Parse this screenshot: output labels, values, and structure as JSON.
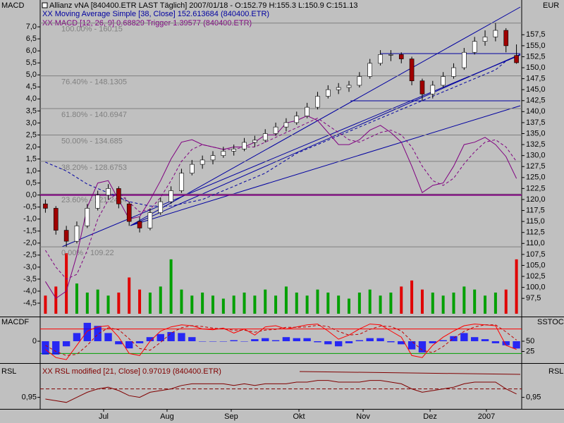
{
  "chart_data": [
    {
      "type": "candlestick",
      "title": "Allianz vNA [840400.ETR LAST Täglich] 2007/01/18 - O:152.79 H:155.3 L:150.9 C:151.13",
      "y_label": "EUR",
      "y2_label": "MACD",
      "open": [
        119,
        118,
        113,
        110.5,
        114,
        118,
        121,
        122.5,
        119,
        115,
        113.5,
        117,
        119.5,
        122,
        126,
        128,
        129,
        130,
        131,
        131.5,
        133,
        133.5,
        135,
        136.5,
        137.5,
        139,
        141,
        143.5,
        145,
        145.5,
        146,
        148,
        151,
        153,
        153,
        152,
        147,
        144,
        146,
        148,
        150,
        153.5,
        156,
        157,
        158.5,
        152.79
      ],
      "high": [
        120,
        118.5,
        114,
        115,
        119,
        122,
        123.5,
        123,
        119.5,
        116,
        118,
        120.5,
        123,
        127,
        129,
        130,
        131,
        132,
        132.5,
        134,
        134.5,
        136,
        137.5,
        138.5,
        140,
        142,
        144.5,
        146,
        146.5,
        147,
        149,
        152,
        154,
        154,
        153.5,
        152.5,
        147.5,
        147,
        149,
        151,
        154.5,
        157,
        158.5,
        160.15,
        159,
        155.3
      ],
      "low": [
        117,
        112,
        109.22,
        110,
        113.5,
        117.5,
        120,
        118,
        114,
        112.5,
        113,
        116.5,
        119,
        121.5,
        125.5,
        127,
        128,
        129.5,
        130,
        131,
        132,
        133,
        134.5,
        135.5,
        137,
        138.5,
        140.5,
        143,
        144,
        144.5,
        145.5,
        147.5,
        150.5,
        151.5,
        151,
        146,
        142.5,
        143,
        145.5,
        147.5,
        149.5,
        153,
        155,
        156,
        153.5,
        150.9
      ],
      "close": [
        118,
        113,
        110.5,
        114,
        118,
        121,
        122.5,
        119,
        115,
        113.5,
        117,
        119.5,
        122,
        126,
        128,
        129,
        130,
        131,
        131.5,
        133,
        133.5,
        135,
        136.5,
        137.5,
        139,
        141,
        143.5,
        145,
        145.5,
        146,
        148,
        151,
        153,
        153,
        152,
        147,
        144,
        146,
        148,
        150,
        153.5,
        156,
        157,
        158.5,
        155,
        151.13
      ],
      "up_color": "#ffffff",
      "down_color": "#a00000",
      "volume": [
        30,
        45,
        100,
        50,
        35,
        40,
        30,
        35,
        60,
        40,
        35,
        45,
        90,
        40,
        30,
        35,
        30,
        25,
        30,
        35,
        30,
        40,
        30,
        45,
        35,
        30,
        40,
        35,
        30,
        25,
        35,
        40,
        30,
        35,
        45,
        55,
        40,
        35,
        30,
        35,
        45,
        40,
        30,
        35,
        40,
        90
      ],
      "volume_up_color": "#00a000",
      "volume_down_color": "#e00000",
      "vlim": [
        0,
        105
      ],
      "series": [
        {
          "name": "XX Moving Average Simple [38, Close] 152.613684 (840400.ETR)",
          "color": "#0000a0",
          "dashed": true,
          "values": [
            128.5,
            127.5,
            126.5,
            125,
            123.5,
            122.5,
            121.5,
            120.5,
            119.5,
            119,
            118.5,
            118.5,
            118.5,
            119,
            119.5,
            120,
            121,
            122,
            123,
            124,
            125,
            126,
            127.5,
            129,
            130.5,
            131.5,
            132.5,
            133.5,
            134.5,
            135.5,
            136.5,
            137.5,
            138.5,
            139.5,
            140.5,
            141.5,
            142.5,
            143.5,
            144.5,
            145.5,
            146.5,
            147.5,
            148.5,
            149.5,
            151.5,
            152.61
          ]
        },
        {
          "name": "XX MACD [12, 26, 9] 0.68829 Trigger 1.39577 (840400.ETR)",
          "color": "#800080",
          "axis": "y2",
          "values": [
            -3.6,
            -4.3,
            -4.0,
            -2.5,
            -0.5,
            0.5,
            0.6,
            -0.2,
            -1.0,
            -0.9,
            -0.2,
            0.6,
            1.5,
            2.2,
            2.3,
            2.1,
            2.0,
            1.9,
            2.0,
            2.0,
            2.2,
            2.5,
            2.5,
            3.0,
            3.1,
            3.3,
            3.1,
            2.6,
            2.1,
            2.1,
            2.3,
            2.7,
            2.9,
            2.6,
            2.2,
            1.2,
            0.1,
            0.4,
            0.5,
            1.2,
            2.1,
            2.2,
            2.4,
            2.1,
            1.6,
            0.68829
          ],
          "trigger": [
            -2.3,
            -3.0,
            -3.5,
            -3.3,
            -2.3,
            -1.0,
            -0.2,
            0.1,
            -0.3,
            -0.7,
            -0.6,
            -0.1,
            0.6,
            1.4,
            1.9,
            2.1,
            2.0,
            1.9,
            1.9,
            2.0,
            2.0,
            2.2,
            2.4,
            2.6,
            2.8,
            3.0,
            3.2,
            2.9,
            2.6,
            2.3,
            2.2,
            2.4,
            2.6,
            2.7,
            2.5,
            2.0,
            1.2,
            0.6,
            0.4,
            0.7,
            1.3,
            1.8,
            2.2,
            2.3,
            2.0,
            1.39577
          ]
        }
      ],
      "y2_hlines": [
        0
      ],
      "y2_hline_color": "#800080",
      "fib_levels": [
        {
          "value": 160.15,
          "label": "100.00% - 160.15"
        },
        {
          "value": 148.1305,
          "label": "76.40% - 148.1305"
        },
        {
          "value": 140.6947,
          "label": "61.80% - 140.6947"
        },
        {
          "value": 134.685,
          "label": "50.00% - 134.685"
        },
        {
          "value": 128.6753,
          "label": "38.20% - 128.6753"
        },
        {
          "value": 121.2424,
          "label": "23.60% - 121.2424"
        },
        {
          "value": 109.22,
          "label": "0.00% - 109.22"
        }
      ],
      "fib_color": "#808080",
      "ylim": [
        94,
        162.2
      ],
      "yticks": [
        {
          "value": 157.5,
          "label": "157,5"
        },
        {
          "value": 155,
          "label": "155,0"
        },
        {
          "value": 152.5,
          "label": "152,5"
        },
        {
          "value": 150,
          "label": "150,0"
        },
        {
          "value": 147.5,
          "label": "147,5"
        },
        {
          "value": 145,
          "label": "145,0"
        },
        {
          "value": 142.5,
          "label": "142,5"
        },
        {
          "value": 140,
          "label": "140,0"
        },
        {
          "value": 137.5,
          "label": "137,5"
        },
        {
          "value": 135,
          "label": "135,0"
        },
        {
          "value": 132.5,
          "label": "132,5"
        },
        {
          "value": 130,
          "label": "130,0"
        },
        {
          "value": 127.5,
          "label": "127,5"
        },
        {
          "value": 125,
          "label": "125,0"
        },
        {
          "value": 122.5,
          "label": "122,5"
        },
        {
          "value": 120,
          "label": "120,0"
        },
        {
          "value": 117.5,
          "label": "117,5"
        },
        {
          "value": 115,
          "label": "115,0"
        },
        {
          "value": 112.5,
          "label": "112,5"
        },
        {
          "value": 110,
          "label": "110,0"
        },
        {
          "value": 107.5,
          "label": "107,5"
        },
        {
          "value": 105,
          "label": "105,0"
        },
        {
          "value": 102.5,
          "label": "102,5"
        },
        {
          "value": 100,
          "label": "100,0"
        },
        {
          "value": 97.5,
          "label": "97,5"
        }
      ],
      "y2lim": [
        -4.94,
        7.53
      ],
      "y2ticks": [
        {
          "value": 7,
          "label": "7,0"
        },
        {
          "value": 6.5,
          "label": "6,5"
        },
        {
          "value": 6,
          "label": "6,0"
        },
        {
          "value": 5.5,
          "label": "5,5"
        },
        {
          "value": 5,
          "label": "5,0"
        },
        {
          "value": 4.5,
          "label": "4,5"
        },
        {
          "value": 4,
          "label": "4,0"
        },
        {
          "value": 3.5,
          "label": "3,5"
        },
        {
          "value": 3,
          "label": "3,0"
        },
        {
          "value": 2.5,
          "label": "2,5"
        },
        {
          "value": 2,
          "label": "2,0"
        },
        {
          "value": 1.5,
          "label": "1,5"
        },
        {
          "value": 1,
          "label": "1,0"
        },
        {
          "value": 0.5,
          "label": "0,5"
        },
        {
          "value": 0,
          "label": "0,0"
        },
        {
          "value": -0.5,
          "label": "-0,5"
        },
        {
          "value": -1,
          "label": "-1,0"
        },
        {
          "value": -1.5,
          "label": "-1,5"
        },
        {
          "value": -2,
          "label": "-2,0"
        },
        {
          "value": -2.5,
          "label": "-2,5"
        },
        {
          "value": -3,
          "label": "-3,0"
        },
        {
          "value": -3.5,
          "label": "-3,5"
        },
        {
          "value": -4,
          "label": "-4,0"
        },
        {
          "value": -4.5,
          "label": "-4,5"
        }
      ]
    },
    {
      "type": "macdf",
      "y_label": "MACDF",
      "y2_label": "SSTOC",
      "values": [
        -1.3,
        -1.3,
        -0.5,
        0.8,
        1.8,
        1.5,
        0.8,
        -0.3,
        -0.7,
        -0.2,
        0.4,
        0.7,
        0.9,
        0.8,
        0.4,
        0,
        0,
        0,
        0.1,
        0,
        0.2,
        0.3,
        0.1,
        0.4,
        0.3,
        0.3,
        -0.1,
        -0.3,
        -0.5,
        -0.2,
        0.1,
        0.3,
        0.3,
        -0.1,
        -0.3,
        -0.8,
        -1.1,
        -0.2,
        0.1,
        0.5,
        0.8,
        0.4,
        0.2,
        -0.2,
        -0.4,
        -0.71
      ],
      "color": "#0000ff",
      "ylim": [
        -2,
        2
      ],
      "yticks": [
        0
      ],
      "series": [
        {
          "color": "#ff0000",
          "axis": "y2",
          "values": [
            30,
            10,
            5,
            40,
            75,
            85,
            88,
            60,
            20,
            15,
            50,
            75,
            85,
            90,
            88,
            80,
            78,
            82,
            70,
            80,
            65,
            85,
            88,
            80,
            85,
            90,
            92,
            75,
            55,
            65,
            80,
            92,
            90,
            75,
            60,
            15,
            10,
            40,
            60,
            75,
            88,
            92,
            90,
            88,
            40,
            30
          ]
        },
        {
          "color": "#c00000",
          "axis": "y2",
          "dashed": true,
          "values": [
            40,
            25,
            15,
            18,
            40,
            67,
            83,
            78,
            56,
            32,
            28,
            47,
            70,
            83,
            88,
            86,
            82,
            80,
            77,
            77,
            72,
            77,
            79,
            84,
            84,
            85,
            89,
            86,
            74,
            65,
            67,
            79,
            87,
            86,
            75,
            50,
            28,
            22,
            37,
            58,
            74,
            85,
            90,
            90,
            73,
            53
          ]
        }
      ],
      "y2_hlines": [
        {
          "value": 80,
          "color": "#ff0000"
        },
        {
          "value": 20,
          "color": "#00a000"
        }
      ],
      "y2lim": [
        0,
        100
      ],
      "y2ticks": [
        50,
        25
      ]
    },
    {
      "type": "line",
      "y_label": "RSL",
      "y2_label": "RSL",
      "series": [
        {
          "name": "XX RSL modified [21, Close] 0.97019 (840400.ETR)",
          "color": "#800000",
          "values": [
            0.94,
            0.93,
            0.92,
            0.95,
            0.98,
            1.0,
            1.01,
            0.99,
            0.96,
            0.95,
            0.98,
            0.99,
            1.0,
            1.02,
            1.03,
            1.03,
            1.03,
            1.03,
            1.02,
            1.03,
            1.02,
            1.03,
            1.03,
            1.03,
            1.04,
            1.04,
            1.05,
            1.05,
            1.04,
            1.04,
            1.04,
            1.05,
            1.05,
            1.04,
            1.03,
            1.0,
            0.98,
            0.99,
            1.0,
            1.01,
            1.03,
            1.04,
            1.04,
            1.04,
            1.0,
            0.97019
          ]
        }
      ],
      "hlines": [
        1.0
      ],
      "ylim": [
        0.89,
        1.14
      ],
      "yticks": [
        {
          "value": 0.95,
          "label": "0,95"
        }
      ],
      "y2lim": [
        0.89,
        1.14
      ],
      "y2ticks": [
        {
          "value": 0.95,
          "label": "0,95"
        }
      ],
      "xlim": [
        0,
        46
      ],
      "xticks": [
        {
          "value": 6.06,
          "label": "Jul"
        },
        {
          "value": 12.12,
          "label": "Aug"
        },
        {
          "value": 18.25,
          "label": "Sep"
        },
        {
          "value": 24.72,
          "label": "Okt"
        },
        {
          "value": 30.85,
          "label": "Nov"
        },
        {
          "value": 37.25,
          "label": "Dez"
        },
        {
          "value": 42.63,
          "label": "2007"
        }
      ]
    }
  ]
}
